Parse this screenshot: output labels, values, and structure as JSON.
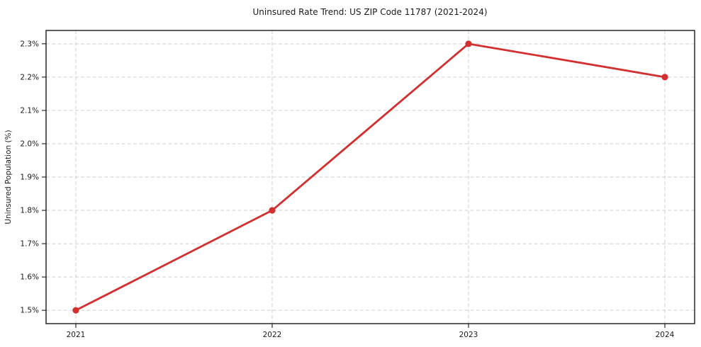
{
  "chart_data": {
    "type": "line",
    "title": "Uninsured Rate Trend: US ZIP Code 11787 (2021-2024)",
    "ylabel": "Uninsured Population (%)",
    "categories": [
      "2021",
      "2022",
      "2023",
      "2024"
    ],
    "values": [
      1.5,
      1.8,
      2.3,
      2.2
    ],
    "yticks": [
      1.5,
      1.6,
      1.7,
      1.8,
      1.9,
      2.0,
      2.1,
      2.2,
      2.3
    ],
    "ytick_labels": [
      "1.5%",
      "1.6%",
      "1.7%",
      "1.8%",
      "1.9%",
      "2.0%",
      "2.1%",
      "2.2%",
      "2.3%"
    ],
    "ylim": [
      1.46,
      2.34
    ],
    "grid": true,
    "legend": "none",
    "line_color": "#d32f2f",
    "marker_color": "#d32f2f",
    "grid_color": "#cfcfcf",
    "axis_color": "#1a1a1a",
    "background": "#ffffff"
  }
}
